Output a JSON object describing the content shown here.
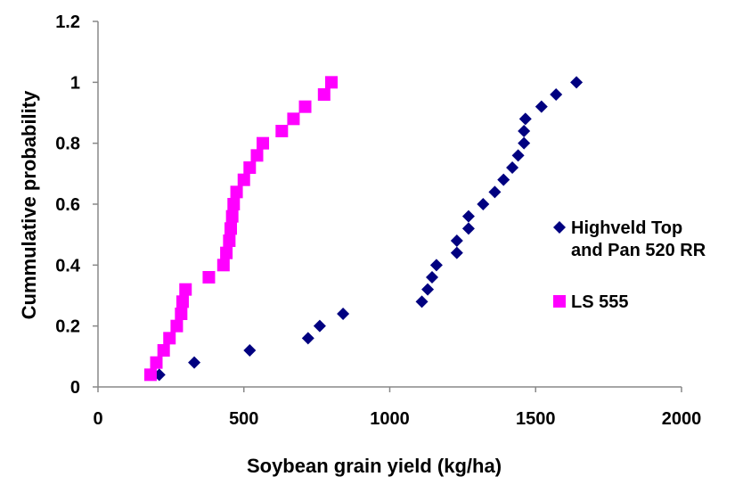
{
  "chart_data": {
    "type": "scatter",
    "title": "",
    "xlabel": "Soybean grain yield (kg/ha)",
    "ylabel": "Cummulative probability",
    "xlim": [
      0,
      2000
    ],
    "ylim": [
      0,
      1.2
    ],
    "xticks": [
      "0",
      "500",
      "1000",
      "1500",
      "2000"
    ],
    "yticks": [
      "0",
      "0.2",
      "0.4",
      "0.6",
      "0.8",
      "1",
      "1.2"
    ],
    "grid": false,
    "legend_position": "right",
    "series": [
      {
        "name_lines": [
          "Highveld Top",
          "and Pan 520 RR"
        ],
        "color": "#000080",
        "marker": "diamond",
        "points": [
          [
            210,
            0.04
          ],
          [
            330,
            0.08
          ],
          [
            520,
            0.12
          ],
          [
            720,
            0.16
          ],
          [
            760,
            0.2
          ],
          [
            840,
            0.24
          ],
          [
            1110,
            0.28
          ],
          [
            1130,
            0.32
          ],
          [
            1145,
            0.36
          ],
          [
            1160,
            0.4
          ],
          [
            1230,
            0.44
          ],
          [
            1230,
            0.48
          ],
          [
            1270,
            0.52
          ],
          [
            1270,
            0.56
          ],
          [
            1320,
            0.6
          ],
          [
            1360,
            0.64
          ],
          [
            1390,
            0.68
          ],
          [
            1420,
            0.72
          ],
          [
            1440,
            0.76
          ],
          [
            1460,
            0.8
          ],
          [
            1460,
            0.84
          ],
          [
            1465,
            0.88
          ],
          [
            1520,
            0.92
          ],
          [
            1570,
            0.96
          ],
          [
            1640,
            1.0
          ]
        ]
      },
      {
        "name_lines": [
          "LS 555"
        ],
        "color": "#ff00ff",
        "marker": "square",
        "points": [
          [
            180,
            0.04
          ],
          [
            200,
            0.08
          ],
          [
            225,
            0.12
          ],
          [
            245,
            0.16
          ],
          [
            270,
            0.2
          ],
          [
            285,
            0.24
          ],
          [
            290,
            0.28
          ],
          [
            300,
            0.32
          ],
          [
            380,
            0.36
          ],
          [
            430,
            0.4
          ],
          [
            440,
            0.44
          ],
          [
            450,
            0.48
          ],
          [
            455,
            0.52
          ],
          [
            460,
            0.56
          ],
          [
            465,
            0.6
          ],
          [
            475,
            0.64
          ],
          [
            500,
            0.68
          ],
          [
            520,
            0.72
          ],
          [
            545,
            0.76
          ],
          [
            565,
            0.8
          ],
          [
            630,
            0.84
          ],
          [
            670,
            0.88
          ],
          [
            710,
            0.92
          ],
          [
            775,
            0.96
          ],
          [
            800,
            1.0
          ]
        ]
      }
    ]
  }
}
